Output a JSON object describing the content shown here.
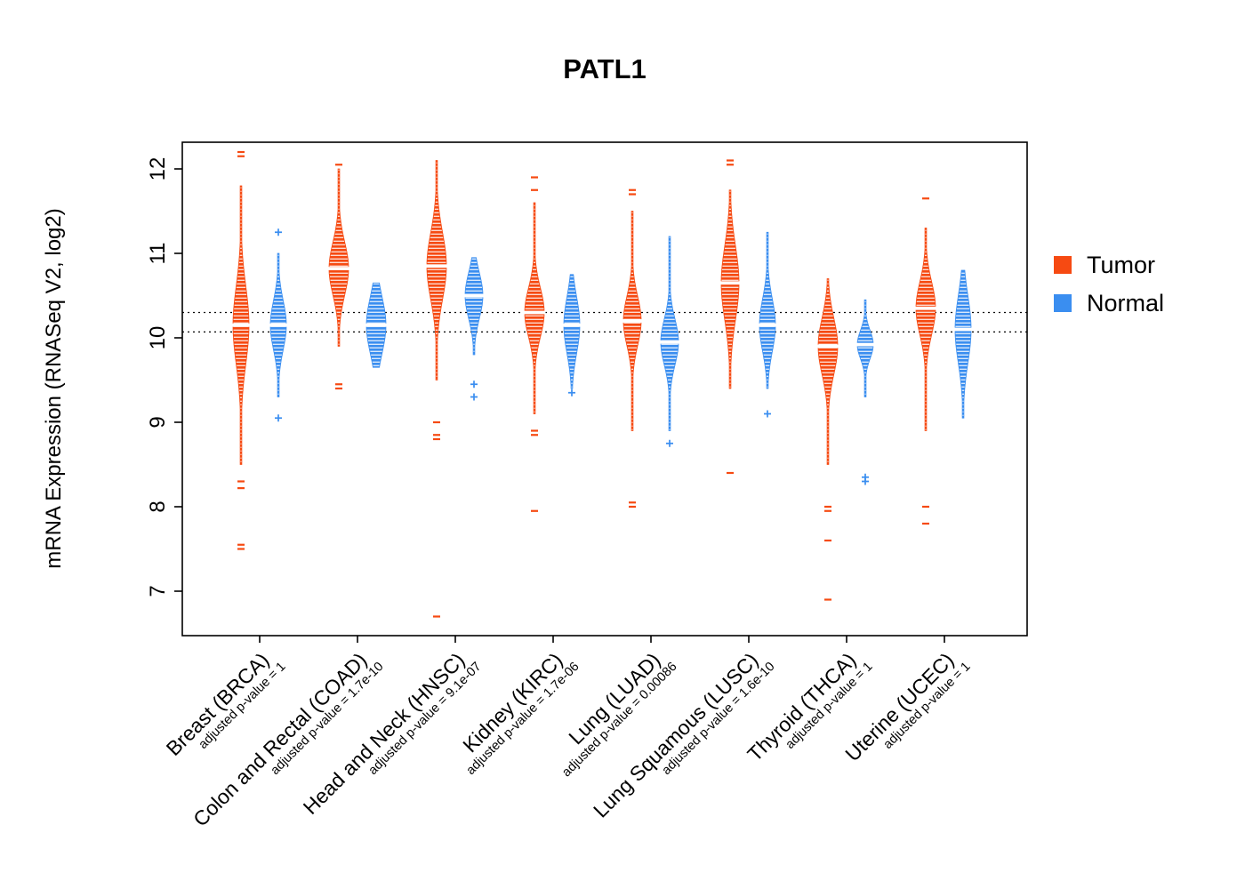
{
  "title": "PATL1",
  "y_axis": {
    "label": "mRNA Expression (RNASeq V2, log2)",
    "ticks": [
      7,
      8,
      9,
      10,
      11,
      12
    ]
  },
  "legend": {
    "items": [
      {
        "label": "Tumor",
        "color": "#F64A12"
      },
      {
        "label": "Normal",
        "color": "#3A8EF0"
      }
    ]
  },
  "chart_data": {
    "type": "violin",
    "series": [
      "Tumor",
      "Normal"
    ],
    "y_range": [
      6.5,
      12.35
    ],
    "reference_lines": [
      10.3,
      10.07
    ],
    "groups": [
      {
        "key": "BRCA",
        "label": "Breast (BRCA)",
        "pvalue_label": "adjusted p-value = 1",
        "tumor": {
          "body": [
            9.55,
            10.65
          ],
          "med": 10.15,
          "tail": [
            8.5,
            11.8
          ],
          "w": 9,
          "outliers": [
            12.2,
            12.15,
            8.3,
            8.22,
            7.55,
            7.5
          ]
        },
        "normal": {
          "body": [
            9.85,
            10.55
          ],
          "med": 10.15,
          "tail": [
            9.3,
            11.0
          ],
          "w": 9,
          "outliers": [
            11.25,
            9.05
          ]
        }
      },
      {
        "key": "COAD",
        "label": "Colon and Rectal (COAD)",
        "pvalue_label": "adjusted p-value = 1.7e-10",
        "tumor": {
          "body": [
            10.45,
            11.2
          ],
          "med": 10.82,
          "tail": [
            9.9,
            12.0
          ],
          "w": 11,
          "outliers": [
            12.05,
            9.45,
            9.4
          ]
        },
        "normal": {
          "body": [
            9.75,
            10.55
          ],
          "med": 10.15,
          "tail": [
            9.65,
            10.65
          ],
          "w": 11,
          "outliers": []
        }
      },
      {
        "key": "HNSC",
        "label": "Head and Neck (HNSC)",
        "pvalue_label": "adjusted p-value = 9.1e-07",
        "tumor": {
          "body": [
            10.4,
            11.35
          ],
          "med": 10.85,
          "tail": [
            9.5,
            12.1
          ],
          "w": 11,
          "outliers": [
            9.0,
            8.85,
            8.8,
            6.7
          ]
        },
        "normal": {
          "body": [
            10.15,
            10.8
          ],
          "med": 10.5,
          "tail": [
            9.8,
            10.95
          ],
          "w": 10,
          "outliers": [
            9.45,
            9.3
          ]
        }
      },
      {
        "key": "KIRC",
        "label": "Kidney (KIRC)",
        "pvalue_label": "adjusted p-value = 1.7e-06",
        "tumor": {
          "body": [
            9.95,
            10.65
          ],
          "med": 10.3,
          "tail": [
            9.1,
            11.6
          ],
          "w": 11,
          "outliers": [
            11.9,
            11.75,
            8.9,
            8.85,
            7.95
          ]
        },
        "normal": {
          "body": [
            9.7,
            10.5
          ],
          "med": 10.15,
          "tail": [
            9.4,
            10.75
          ],
          "w": 9,
          "outliers": [
            9.35
          ]
        }
      },
      {
        "key": "LUAD",
        "label": "Lung (LUAD)",
        "pvalue_label": "adjusted p-value = 0.00086",
        "tumor": {
          "body": [
            9.85,
            10.55
          ],
          "med": 10.2,
          "tail": [
            8.9,
            11.5
          ],
          "w": 10,
          "outliers": [
            11.75,
            11.7,
            8.05,
            8.0
          ]
        },
        "normal": {
          "body": [
            9.65,
            10.3
          ],
          "med": 9.95,
          "tail": [
            8.9,
            11.2
          ],
          "w": 10,
          "outliers": [
            8.75
          ]
        }
      },
      {
        "key": "LUSC",
        "label": "Lung Squamous (LUSC)",
        "pvalue_label": "adjusted p-value = 1.6e-10",
        "tumor": {
          "body": [
            10.15,
            11.2
          ],
          "med": 10.65,
          "tail": [
            9.4,
            11.75
          ],
          "w": 10,
          "outliers": [
            12.1,
            12.05,
            8.4
          ]
        },
        "normal": {
          "body": [
            9.8,
            10.55
          ],
          "med": 10.15,
          "tail": [
            9.4,
            11.25
          ],
          "w": 9,
          "outliers": [
            9.1
          ]
        }
      },
      {
        "key": "THCA",
        "label": "Thyroid (THCA)",
        "pvalue_label": "adjusted p-value = 1",
        "tumor": {
          "body": [
            9.55,
            10.35
          ],
          "med": 9.9,
          "tail": [
            8.5,
            10.7
          ],
          "w": 11,
          "outliers": [
            8.0,
            7.95,
            7.6,
            6.9
          ]
        },
        "normal": {
          "body": [
            9.7,
            10.1
          ],
          "med": 9.92,
          "tail": [
            9.3,
            10.45
          ],
          "w": 9,
          "outliers": [
            8.35,
            8.3
          ]
        }
      },
      {
        "key": "UCEC",
        "label": "Uterine (UCEC)",
        "pvalue_label": "adjusted p-value = 1",
        "tumor": {
          "body": [
            9.95,
            10.7
          ],
          "med": 10.35,
          "tail": [
            8.9,
            11.3
          ],
          "w": 11,
          "outliers": [
            11.65,
            8.0,
            7.8
          ]
        },
        "normal": {
          "body": [
            9.45,
            10.4
          ],
          "med": 10.1,
          "tail": [
            9.05,
            10.8
          ],
          "w": 9,
          "outliers": []
        }
      }
    ]
  }
}
